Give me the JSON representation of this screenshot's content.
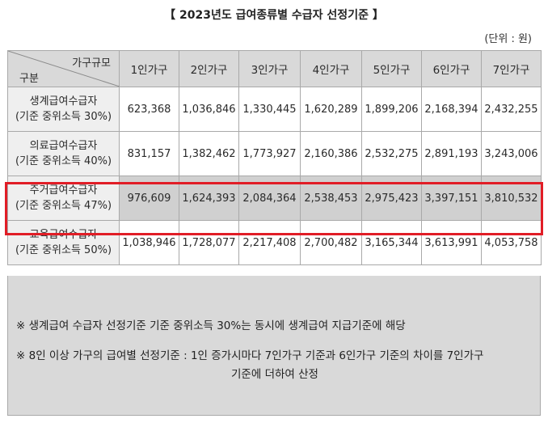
{
  "title": "【 2023년도 급여종류별 수급자 선정기준 】",
  "unit": "(단위 : 원)",
  "table": {
    "corner_top": "가구규모",
    "corner_bottom": "구분",
    "headers": [
      "1인가구",
      "2인가구",
      "3인가구",
      "4인가구",
      "5인가구",
      "6인가구",
      "7인가구"
    ],
    "rows": [
      {
        "label_line1": "생계급여수급자",
        "label_line2": "(기준 중위소득 30%)",
        "values": [
          "623,368",
          "1,036,846",
          "1,330,445",
          "1,620,289",
          "1,899,206",
          "2,168,394",
          "2,432,255"
        ]
      },
      {
        "label_line1": "의료급여수급자",
        "label_line2": "(기준 중위소득 40%)",
        "values": [
          "831,157",
          "1,382,462",
          "1,773,927",
          "2,160,386",
          "2,532,275",
          "2,891,193",
          "3,243,006"
        ]
      },
      {
        "label_line1": "주거급여수급자",
        "label_line2": "(기준 중위소득 47%)",
        "values": [
          "976,609",
          "1,624,393",
          "2,084,364",
          "2,538,453",
          "2,975,423",
          "3,397,151",
          "3,810,532"
        ]
      },
      {
        "label_line1": "교육급여수급자",
        "label_line2": "(기준 중위소득 50%)",
        "values": [
          "1,038,946",
          "1,728,077",
          "2,217,408",
          "2,700,482",
          "3,165,344",
          "3,613,991",
          "4,053,758"
        ]
      }
    ]
  },
  "notes": {
    "note1": "※ 생계급여 수급자 선정기준 기준 중위소득 30%는 동시에 생계급여 지급기준에 해당",
    "note2_line1": "※ 8인 이상 가구의 급여별 선정기준 : 1인 증가시마다 7인가구 기준과 6인가구 기준의 차이를 7인가구",
    "note2_line2": "기준에 더하여 산정"
  },
  "colors": {
    "header_bg": "#d9d9d9",
    "highlight_border": "#e11d26",
    "highlight_row_bg": "#d0d0d0"
  }
}
